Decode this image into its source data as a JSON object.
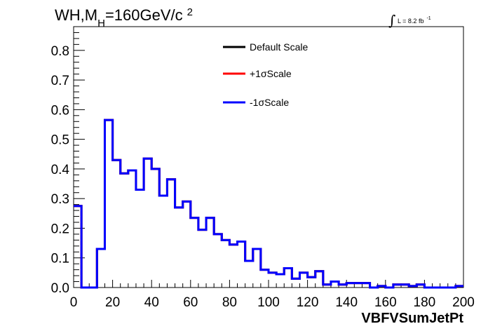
{
  "title": {
    "main": "WH,M",
    "subscript": "H",
    "rest": "=160GeV/c",
    "superscript": "2"
  },
  "luminosity": {
    "integral": "∫",
    "text": "L = 8.2 fb",
    "superscript": "-1"
  },
  "chart_data": {
    "type": "line",
    "drawstyle": "step",
    "xlabel": "VBFVSumJetPt",
    "ylabel": "",
    "xlim": [
      0,
      200
    ],
    "ylim": [
      0,
      0.88
    ],
    "xticks": [
      0,
      20,
      40,
      60,
      80,
      100,
      120,
      140,
      160,
      180,
      200
    ],
    "xtick_labels": [
      "0",
      "20",
      "40",
      "60",
      "80",
      "100",
      "120",
      "140",
      "160",
      "180",
      "200"
    ],
    "yticks": [
      0,
      0.1,
      0.2,
      0.3,
      0.4,
      0.5,
      0.6,
      0.7,
      0.8
    ],
    "ytick_labels": [
      "0.0",
      "0.1",
      "0.2",
      "0.3",
      "0.4",
      "0.5",
      "0.6",
      "0.7",
      "0.8"
    ],
    "bin_edges": [
      0,
      4,
      8,
      12,
      16,
      20,
      24,
      28,
      32,
      36,
      40,
      44,
      48,
      52,
      56,
      60,
      64,
      68,
      72,
      76,
      80,
      84,
      88,
      92,
      96,
      100,
      104,
      108,
      112,
      116,
      120,
      124,
      128,
      132,
      136,
      140,
      144,
      148,
      152,
      156,
      160,
      164,
      168,
      172,
      176,
      180,
      184,
      188,
      192,
      196,
      200
    ],
    "legend_position": "top-center",
    "series": [
      {
        "name": "Default Scale",
        "color": "#000000",
        "values": [
          0.275,
          0.0,
          0.0,
          0.13,
          0.565,
          0.43,
          0.385,
          0.395,
          0.33,
          0.435,
          0.4,
          0.31,
          0.365,
          0.27,
          0.29,
          0.235,
          0.195,
          0.235,
          0.18,
          0.16,
          0.145,
          0.155,
          0.09,
          0.13,
          0.06,
          0.05,
          0.045,
          0.065,
          0.03,
          0.05,
          0.035,
          0.055,
          0.01,
          0.02,
          0.01,
          0.015,
          0.015,
          0.015,
          0.0,
          0.005,
          0.0,
          0.01,
          0.01,
          0.005,
          0.01,
          0.0,
          0.0,
          0.0,
          0.0,
          0.005
        ]
      },
      {
        "name": "+1σScale",
        "color": "#ff0000",
        "values": [
          0.275,
          0.0,
          0.0,
          0.13,
          0.565,
          0.43,
          0.385,
          0.395,
          0.33,
          0.435,
          0.4,
          0.31,
          0.365,
          0.27,
          0.29,
          0.235,
          0.195,
          0.235,
          0.18,
          0.16,
          0.145,
          0.155,
          0.09,
          0.13,
          0.06,
          0.05,
          0.045,
          0.065,
          0.03,
          0.05,
          0.035,
          0.055,
          0.01,
          0.02,
          0.01,
          0.015,
          0.015,
          0.015,
          0.0,
          0.005,
          0.0,
          0.01,
          0.01,
          0.005,
          0.01,
          0.0,
          0.0,
          0.0,
          0.0,
          0.005
        ]
      },
      {
        "name": "-1σScale",
        "color": "#0000ff",
        "values": [
          0.275,
          0.0,
          0.0,
          0.13,
          0.565,
          0.43,
          0.385,
          0.395,
          0.33,
          0.435,
          0.4,
          0.31,
          0.365,
          0.27,
          0.29,
          0.235,
          0.195,
          0.235,
          0.18,
          0.16,
          0.145,
          0.155,
          0.09,
          0.13,
          0.06,
          0.05,
          0.045,
          0.065,
          0.03,
          0.05,
          0.035,
          0.055,
          0.01,
          0.02,
          0.01,
          0.015,
          0.015,
          0.015,
          0.0,
          0.005,
          0.0,
          0.01,
          0.01,
          0.005,
          0.01,
          0.0,
          0.0,
          0.0,
          0.0,
          0.005
        ]
      }
    ]
  }
}
